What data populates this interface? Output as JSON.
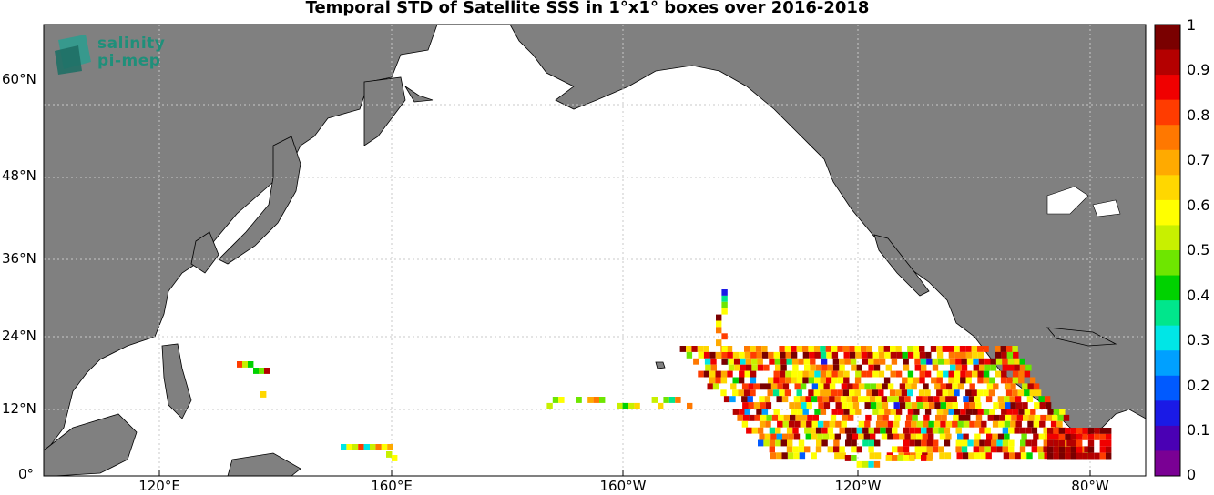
{
  "title": "Temporal STD of Satellite SSS in 1°x1° boxes over 2016-2018",
  "logo": {
    "line1": "salinity",
    "line2": "pi-mep"
  },
  "lat_ticks": [
    "60°N",
    "48°N",
    "36°N",
    "24°N",
    "12°N",
    "0°"
  ],
  "lon_ticks": [
    "120°E",
    "160°E",
    "160°W",
    "120°W",
    "80°W"
  ],
  "colorbar": {
    "ticks": [
      "1",
      "0.9",
      "0.8",
      "0.7",
      "0.6",
      "0.5",
      "0.4",
      "0.3",
      "0.2",
      "0.1",
      "0"
    ],
    "colors": [
      "#7a0094",
      "#4a00b4",
      "#1a1ae6",
      "#005aff",
      "#00a0ff",
      "#00e6e6",
      "#00e68c",
      "#00d200",
      "#6ee600",
      "#c8f000",
      "#ffff00",
      "#ffd700",
      "#ffaa00",
      "#ff7800",
      "#ff3c00",
      "#f00000",
      "#b40000",
      "#7a0000"
    ]
  },
  "map": {
    "region": "Pacific Ocean",
    "lon_range": [
      "100°E",
      "70°W"
    ],
    "lat_range": [
      "0°",
      "68°N"
    ],
    "land_color": "#808080",
    "ocean_color": "#ffffff",
    "grid": "dotted"
  }
}
